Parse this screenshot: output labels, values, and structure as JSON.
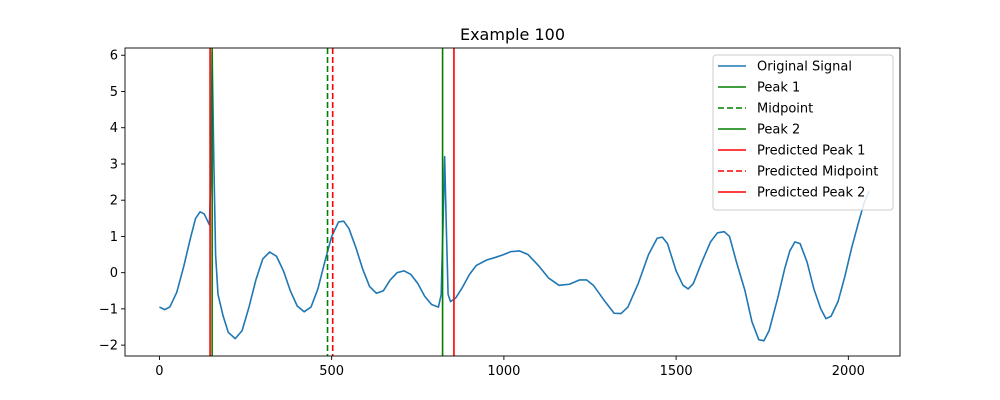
{
  "chart_data": {
    "type": "line",
    "title": "Example 100",
    "xlabel": "",
    "ylabel": "",
    "xlim": [
      -100,
      2150
    ],
    "ylim": [
      -2.3,
      6.2
    ],
    "xticks": [
      0,
      500,
      1000,
      1500,
      2000
    ],
    "yticks": [
      -2,
      -1,
      0,
      1,
      2,
      3,
      4,
      5,
      6
    ],
    "grid": false,
    "legend_position": "top-right",
    "series": [
      {
        "name": "Original Signal",
        "color": "#1f77b4",
        "style": "solid",
        "points": [
          [
            0,
            -0.95
          ],
          [
            15,
            -1.02
          ],
          [
            30,
            -0.95
          ],
          [
            50,
            -0.55
          ],
          [
            70,
            0.15
          ],
          [
            90,
            0.95
          ],
          [
            105,
            1.5
          ],
          [
            118,
            1.68
          ],
          [
            130,
            1.62
          ],
          [
            140,
            1.42
          ],
          [
            145,
            1.32
          ],
          [
            149,
            2.5
          ],
          [
            153,
            6.1
          ],
          [
            158,
            3.0
          ],
          [
            163,
            0.5
          ],
          [
            170,
            -0.6
          ],
          [
            185,
            -1.2
          ],
          [
            200,
            -1.65
          ],
          [
            220,
            -1.82
          ],
          [
            240,
            -1.6
          ],
          [
            260,
            -0.95
          ],
          [
            280,
            -0.2
          ],
          [
            300,
            0.38
          ],
          [
            320,
            0.57
          ],
          [
            340,
            0.45
          ],
          [
            360,
            0.05
          ],
          [
            380,
            -0.5
          ],
          [
            400,
            -0.92
          ],
          [
            420,
            -1.08
          ],
          [
            440,
            -0.95
          ],
          [
            460,
            -0.45
          ],
          [
            480,
            0.3
          ],
          [
            500,
            1.0
          ],
          [
            520,
            1.4
          ],
          [
            535,
            1.42
          ],
          [
            550,
            1.22
          ],
          [
            570,
            0.7
          ],
          [
            590,
            0.1
          ],
          [
            610,
            -0.38
          ],
          [
            630,
            -0.57
          ],
          [
            650,
            -0.5
          ],
          [
            670,
            -0.2
          ],
          [
            690,
            0.0
          ],
          [
            710,
            0.05
          ],
          [
            730,
            -0.05
          ],
          [
            750,
            -0.3
          ],
          [
            770,
            -0.65
          ],
          [
            790,
            -0.88
          ],
          [
            810,
            -0.95
          ],
          [
            818,
            -0.6
          ],
          [
            823,
            1.2
          ],
          [
            828,
            3.2
          ],
          [
            833,
            1.2
          ],
          [
            838,
            -0.6
          ],
          [
            845,
            -0.8
          ],
          [
            860,
            -0.7
          ],
          [
            880,
            -0.4
          ],
          [
            900,
            -0.05
          ],
          [
            920,
            0.2
          ],
          [
            950,
            0.35
          ],
          [
            975,
            0.42
          ],
          [
            1000,
            0.5
          ],
          [
            1020,
            0.58
          ],
          [
            1045,
            0.6
          ],
          [
            1070,
            0.5
          ],
          [
            1100,
            0.2
          ],
          [
            1130,
            -0.15
          ],
          [
            1160,
            -0.35
          ],
          [
            1190,
            -0.32
          ],
          [
            1220,
            -0.2
          ],
          [
            1240,
            -0.2
          ],
          [
            1260,
            -0.35
          ],
          [
            1290,
            -0.75
          ],
          [
            1320,
            -1.12
          ],
          [
            1340,
            -1.13
          ],
          [
            1360,
            -0.95
          ],
          [
            1390,
            -0.3
          ],
          [
            1420,
            0.5
          ],
          [
            1445,
            0.95
          ],
          [
            1460,
            0.98
          ],
          [
            1475,
            0.8
          ],
          [
            1500,
            0.05
          ],
          [
            1520,
            -0.35
          ],
          [
            1535,
            -0.45
          ],
          [
            1550,
            -0.3
          ],
          [
            1575,
            0.3
          ],
          [
            1600,
            0.85
          ],
          [
            1620,
            1.1
          ],
          [
            1640,
            1.13
          ],
          [
            1655,
            1.0
          ],
          [
            1675,
            0.3
          ],
          [
            1700,
            -0.5
          ],
          [
            1720,
            -1.35
          ],
          [
            1740,
            -1.85
          ],
          [
            1755,
            -1.88
          ],
          [
            1770,
            -1.6
          ],
          [
            1795,
            -0.7
          ],
          [
            1815,
            0.1
          ],
          [
            1830,
            0.6
          ],
          [
            1845,
            0.85
          ],
          [
            1860,
            0.8
          ],
          [
            1880,
            0.3
          ],
          [
            1900,
            -0.45
          ],
          [
            1920,
            -1.0
          ],
          [
            1935,
            -1.27
          ],
          [
            1950,
            -1.2
          ],
          [
            1970,
            -0.8
          ],
          [
            1990,
            -0.1
          ],
          [
            2010,
            0.7
          ],
          [
            2030,
            1.4
          ],
          [
            2045,
            1.9
          ],
          [
            2060,
            2.25
          ]
        ]
      }
    ],
    "vlines": [
      {
        "name": "Peak 1",
        "x": 153,
        "color": "#008000",
        "style": "solid"
      },
      {
        "name": "Midpoint",
        "x": 488,
        "color": "#008000",
        "style": "dashed"
      },
      {
        "name": "Peak 2",
        "x": 822,
        "color": "#008000",
        "style": "solid"
      },
      {
        "name": "Predicted Peak 1",
        "x": 147,
        "color": "#ff0000",
        "style": "solid"
      },
      {
        "name": "Predicted Midpoint",
        "x": 503,
        "color": "#ff0000",
        "style": "dashed"
      },
      {
        "name": "Predicted Peak 2",
        "x": 855,
        "color": "#ff0000",
        "style": "solid"
      }
    ]
  }
}
